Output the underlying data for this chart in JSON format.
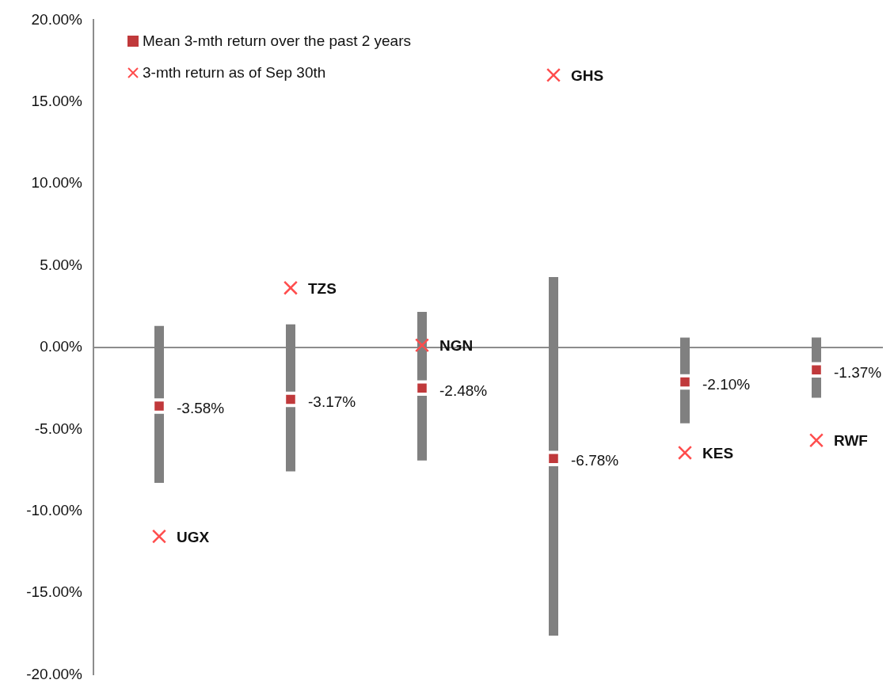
{
  "chart_data": {
    "type": "scatter",
    "categories": [
      null,
      null,
      null,
      null,
      null,
      null
    ],
    "series": [
      {
        "name": "Mean 3-mth return over the past 2 years",
        "color": "#c0393b",
        "marker": "square",
        "values": [
          -3.58,
          -3.17,
          -2.48,
          -6.78,
          -2.1,
          -1.37
        ],
        "errors": [
          [
            -8.27,
            1.32
          ],
          [
            -7.57,
            1.42
          ],
          [
            -6.9,
            2.17
          ],
          [
            -17.6,
            4.3
          ],
          [
            -4.63,
            0.61
          ],
          [
            -3.07,
            0.61
          ]
        ],
        "value_labels": [
          "-3.58%",
          "-3.17%",
          "-2.48%",
          "-6.78%",
          "-2.10%",
          "-1.37%"
        ]
      },
      {
        "name": "3-mth return as of Sep 30th",
        "color": "#ff4d4d",
        "marker": "cross",
        "values": [
          -11.54,
          3.64,
          0.14,
          16.64,
          -6.43,
          -5.67
        ],
        "value_labels": [
          "UGX",
          "TZS",
          "NGN",
          "GHS",
          "KES",
          "RWF"
        ]
      }
    ],
    "ylim": [
      -20,
      20
    ],
    "yticks": [
      {
        "value": -20,
        "label": "-20.00%"
      },
      {
        "value": -15,
        "label": "-15.00%"
      },
      {
        "value": -10,
        "label": "-10.00%"
      },
      {
        "value": -5,
        "label": "-5.00%"
      },
      {
        "value": 0,
        "label": "0.00%"
      },
      {
        "value": 5,
        "label": "5.00%"
      },
      {
        "value": 10,
        "label": "10.00%"
      },
      {
        "value": 15,
        "label": "15.00%"
      },
      {
        "value": 20,
        "label": "20.00%"
      }
    ],
    "legend": "top left",
    "tick_labels": "y"
  }
}
